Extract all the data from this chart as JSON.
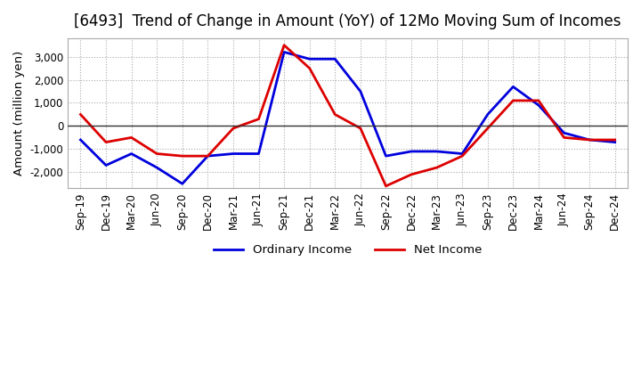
{
  "title": "[6493]  Trend of Change in Amount (YoY) of 12Mo Moving Sum of Incomes",
  "ylabel": "Amount (million yen)",
  "ylim": [
    -2700,
    3800
  ],
  "yticks": [
    -2000,
    -1000,
    0,
    1000,
    2000,
    3000
  ],
  "background_color": "#ffffff",
  "grid_color": "#aaaaaa",
  "labels": [
    "Sep-19",
    "Dec-19",
    "Mar-20",
    "Jun-20",
    "Sep-20",
    "Dec-20",
    "Mar-21",
    "Jun-21",
    "Sep-21",
    "Dec-21",
    "Mar-22",
    "Jun-22",
    "Sep-22",
    "Dec-22",
    "Mar-23",
    "Jun-23",
    "Sep-23",
    "Dec-23",
    "Mar-24",
    "Jun-24",
    "Sep-24",
    "Dec-24"
  ],
  "ordinary_income": [
    -600,
    -1700,
    -1200,
    -1800,
    -2500,
    -1300,
    -1200,
    -1200,
    3200,
    2900,
    2900,
    1500,
    -1300,
    -1100,
    -1100,
    -1200,
    500,
    1700,
    900,
    -300,
    -600,
    -700
  ],
  "net_income": [
    500,
    -700,
    -500,
    -1200,
    -1300,
    -1300,
    -100,
    300,
    3500,
    2500,
    500,
    -100,
    -2600,
    -2100,
    -1800,
    -1300,
    -100,
    1100,
    1100,
    -500,
    -600,
    -600
  ],
  "ordinary_color": "#0000dd",
  "net_color": "#dd0000",
  "line_width": 2.0,
  "title_fontsize": 12,
  "axis_fontsize": 8.5,
  "ylabel_fontsize": 9.5
}
